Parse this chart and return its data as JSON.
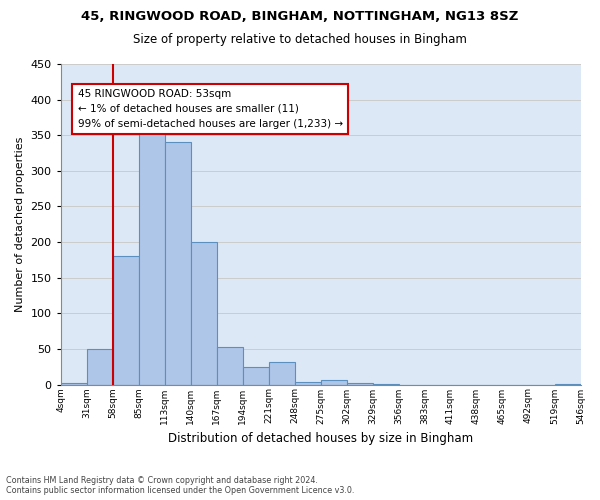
{
  "title1": "45, RINGWOOD ROAD, BINGHAM, NOTTINGHAM, NG13 8SZ",
  "title2": "Size of property relative to detached houses in Bingham",
  "xlabel": "Distribution of detached houses by size in Bingham",
  "ylabel": "Number of detached properties",
  "footnote1": "Contains HM Land Registry data © Crown copyright and database right 2024.",
  "footnote2": "Contains public sector information licensed under the Open Government Licence v3.0.",
  "bin_labels": [
    "4sqm",
    "31sqm",
    "58sqm",
    "85sqm",
    "113sqm",
    "140sqm",
    "167sqm",
    "194sqm",
    "221sqm",
    "248sqm",
    "275sqm",
    "302sqm",
    "329sqm",
    "356sqm",
    "383sqm",
    "411sqm",
    "438sqm",
    "465sqm",
    "492sqm",
    "519sqm",
    "546sqm"
  ],
  "bar_values": [
    2,
    50,
    180,
    365,
    340,
    200,
    53,
    25,
    32,
    4,
    7,
    2,
    1,
    0,
    0,
    0,
    0,
    0,
    0,
    1
  ],
  "bar_color": "#aec6e8",
  "bar_edge_color": "#5a8fc0",
  "annotation_box_color": "#cc0000",
  "annotation_line1": "45 RINGWOOD ROAD: 53sqm",
  "annotation_line2": "← 1% of detached houses are smaller (11)",
  "annotation_line3": "99% of semi-detached houses are larger (1,233) →",
  "property_line_x": 1.5,
  "ylim": [
    0,
    450
  ],
  "yticks": [
    0,
    50,
    100,
    150,
    200,
    250,
    300,
    350,
    400,
    450
  ],
  "grid_color": "#cccccc",
  "background_color": "#dce8f5"
}
